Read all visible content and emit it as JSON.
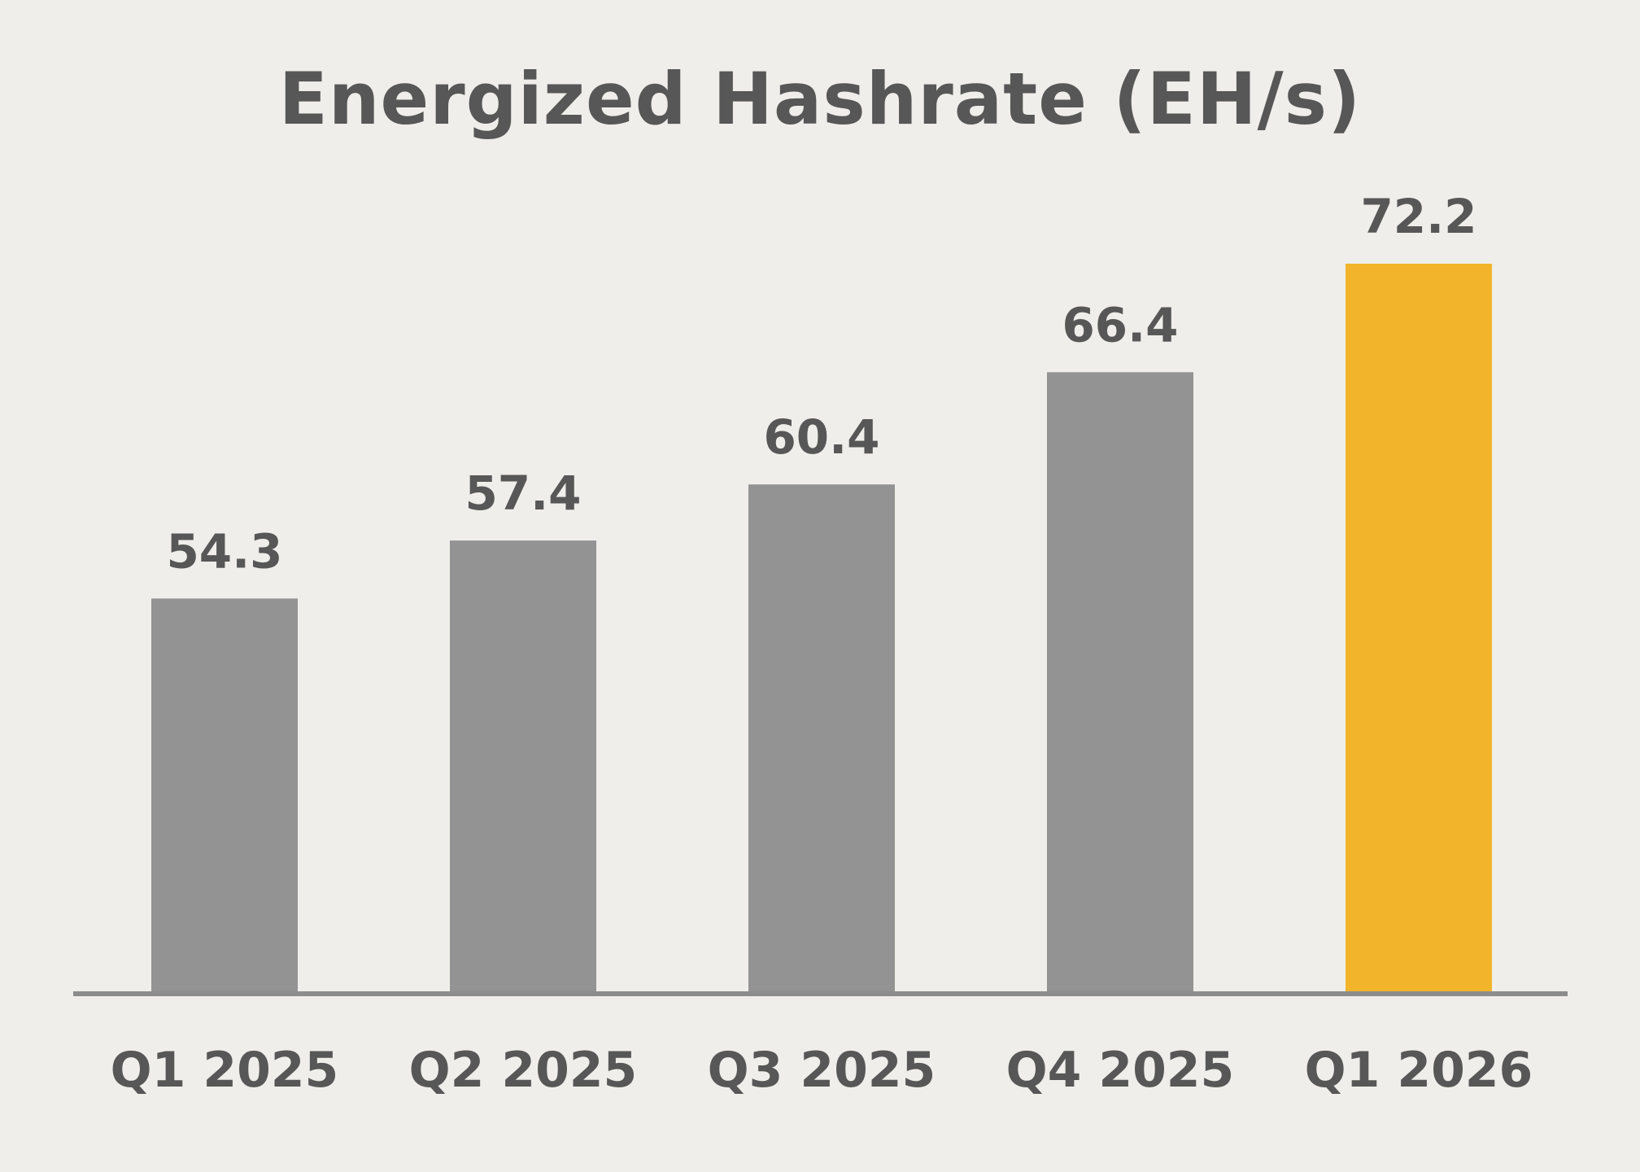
{
  "chart_data": {
    "type": "bar",
    "title": "Energized Hashrate (EH/s)",
    "xlabel": "",
    "ylabel": "",
    "categories": [
      "Q1 2025",
      "Q2 2025",
      "Q3 2025",
      "Q4 2025",
      "Q1 2026"
    ],
    "values": [
      54.3,
      57.4,
      60.4,
      66.4,
      72.2
    ],
    "value_labels": [
      "54.3",
      "57.4",
      "60.4",
      "66.4",
      "72.2"
    ],
    "ylim": [
      33.3,
      72.2
    ],
    "grid": false,
    "legend": "none",
    "colors": {
      "default_bar": "#939393",
      "highlight_bar": "#f2b42b",
      "axis": "#8c8c8c",
      "text": "#575757",
      "background": "#efeeea"
    },
    "highlight_index": 4
  }
}
